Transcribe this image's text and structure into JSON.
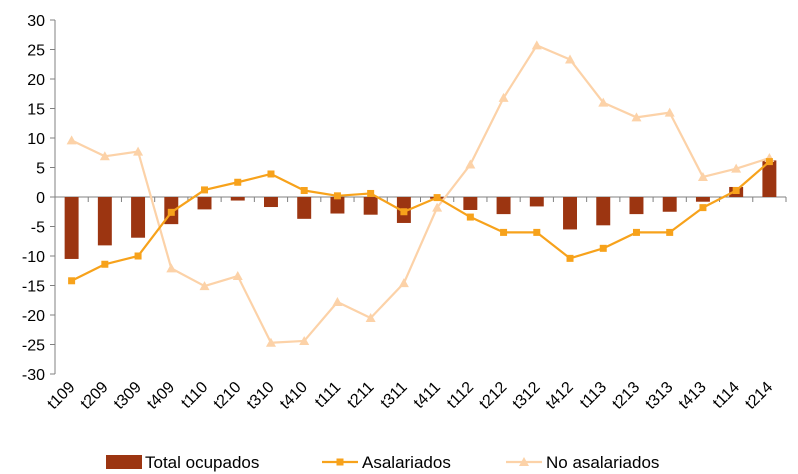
{
  "chart_data": {
    "type": "bar",
    "categories": [
      "t109",
      "t209",
      "t309",
      "t409",
      "t110",
      "t210",
      "t310",
      "t410",
      "t111",
      "t211",
      "t311",
      "t411",
      "t112",
      "t212",
      "t312",
      "t412",
      "t113",
      "t213",
      "t313",
      "t413",
      "t114",
      "t214"
    ],
    "ylim": [
      -30,
      30
    ],
    "yticks": [
      30,
      25,
      20,
      15,
      10,
      5,
      0,
      -5,
      -10,
      -15,
      -20,
      -25,
      -30
    ],
    "legend_position": "bottom",
    "series": [
      {
        "name": "Total ocupados",
        "kind": "bar",
        "color": "#9C3511",
        "values": [
          -10.5,
          -8.2,
          -6.9,
          -4.6,
          -2.1,
          -0.6,
          -1.7,
          -3.7,
          -2.8,
          -3.0,
          -4.4,
          -0.3,
          -2.2,
          -2.9,
          -1.6,
          -5.5,
          -4.8,
          -2.9,
          -2.5,
          -0.8,
          1.7,
          6.2
        ]
      },
      {
        "name": "Asalariados",
        "kind": "line",
        "marker": "square",
        "color": "#F7A21B",
        "values": [
          -14.2,
          -11.4,
          -10.0,
          -2.6,
          1.2,
          2.5,
          3.9,
          1.1,
          0.2,
          0.6,
          -2.5,
          -0.1,
          -3.4,
          -6.0,
          -6.0,
          -10.4,
          -8.7,
          -6.0,
          -6.0,
          -1.8,
          1.1,
          6.0
        ]
      },
      {
        "name": "No asalariados",
        "kind": "line",
        "marker": "triangle",
        "color": "#FCD2A8",
        "values": [
          9.6,
          6.9,
          7.7,
          -12.1,
          -15.1,
          -13.4,
          -24.7,
          -24.4,
          -17.8,
          -20.5,
          -14.6,
          -1.8,
          5.5,
          16.8,
          25.7,
          23.3,
          16.0,
          13.5,
          14.3,
          3.4,
          4.8,
          6.6
        ]
      }
    ]
  }
}
